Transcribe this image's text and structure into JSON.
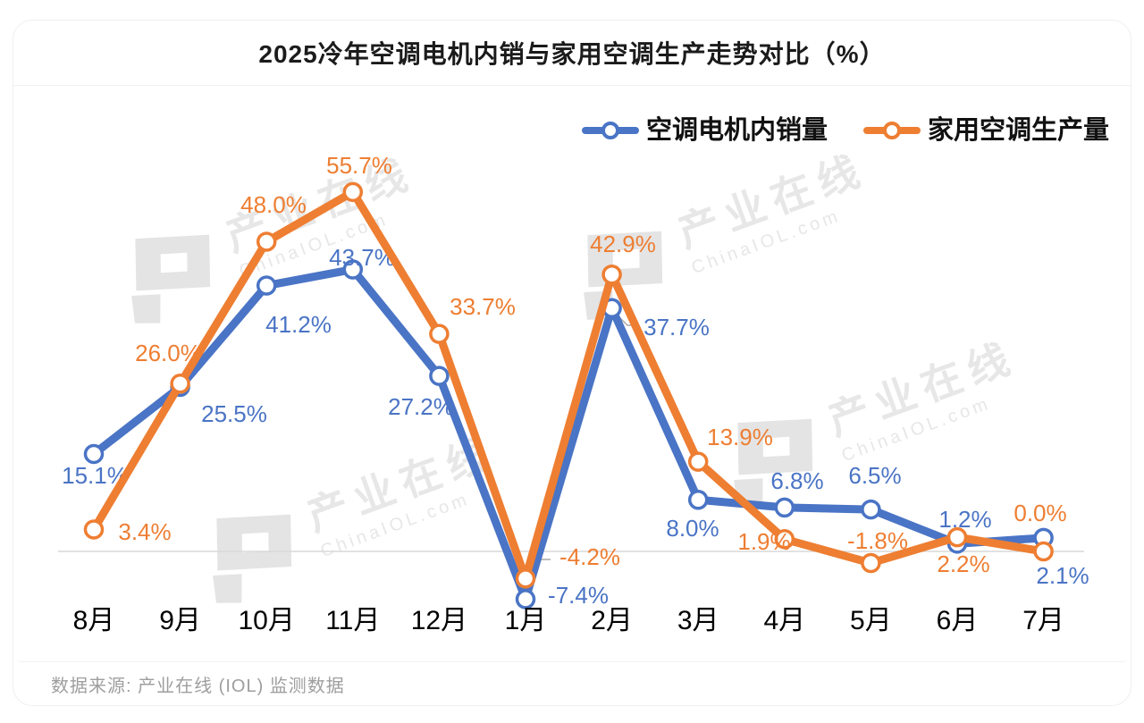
{
  "title": "2025冷年空调电机内销与家用空调生产走势对比（%）",
  "footer": {
    "source": "数据来源: 产业在线 (IOL) 监测数据"
  },
  "watermark": {
    "line1": "产业在线",
    "line2": "ChinaIOL.com"
  },
  "chart_data": {
    "type": "line",
    "title": "2025冷年空调电机内销与家用空调生产走势对比（%）",
    "unit": "%",
    "categories": [
      "8月",
      "9月",
      "10月",
      "11月",
      "12月",
      "1月",
      "2月",
      "3月",
      "4月",
      "5月",
      "6月",
      "7月"
    ],
    "series": [
      {
        "name": "空调电机内销量",
        "color": "#4A74C5",
        "values": [
          15.1,
          25.5,
          41.2,
          43.7,
          27.2,
          -7.4,
          37.7,
          8.0,
          6.8,
          6.5,
          1.2,
          2.1
        ]
      },
      {
        "name": "家用空调生产量",
        "color": "#EE7E32",
        "values": [
          3.4,
          26.0,
          48.0,
          55.7,
          33.7,
          -4.2,
          42.9,
          13.9,
          1.9,
          -1.8,
          2.2,
          0.0
        ]
      }
    ],
    "ylim": [
      -10,
      60
    ],
    "grid": false,
    "baseline": 0,
    "axis_line_color": "#d8d8d8",
    "leader_line_color": "#a8a8a8",
    "legend_position": "top-right",
    "label_suffix": "%"
  }
}
